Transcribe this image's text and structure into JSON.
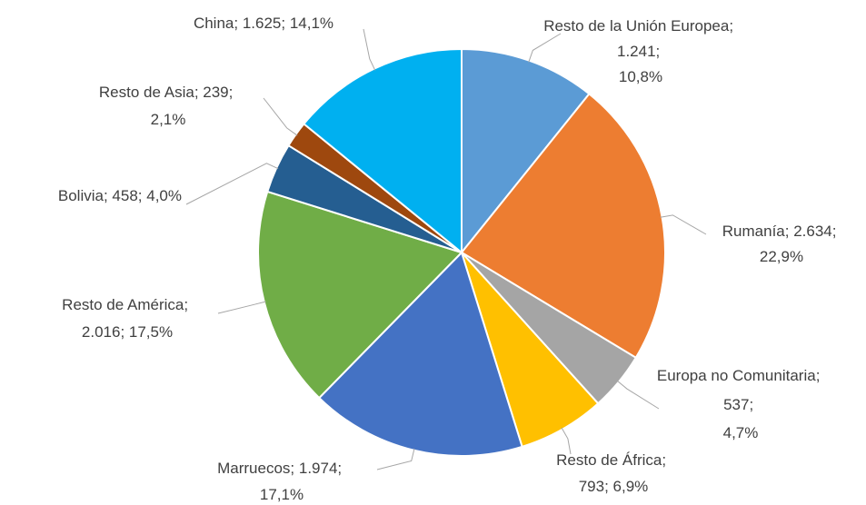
{
  "chart_data": {
    "type": "pie",
    "categories": [
      "Resto de la Unión Europea",
      "Rumanía",
      "Europa no Comunitaria",
      "Resto de África",
      "Marruecos",
      "Resto de América",
      "Bolivia",
      "Resto de Asia",
      "China"
    ],
    "values": [
      1241,
      2634,
      537,
      793,
      1974,
      2016,
      458,
      239,
      1625
    ],
    "value_labels": [
      "1.241",
      "2.634",
      "537",
      "793",
      "1.974",
      "2.016",
      "458",
      "239",
      "1.625"
    ],
    "percents": [
      10.8,
      22.9,
      4.7,
      6.9,
      17.1,
      17.5,
      4.0,
      2.1,
      14.1
    ],
    "percent_labels": [
      "10,8%",
      "22,9%",
      "4,7%",
      "6,9%",
      "17,1%",
      "17,5%",
      "4,0%",
      "2,1%",
      "14,1%"
    ],
    "separator": "; ",
    "colors": [
      "#5b9bd5",
      "#ed7d31",
      "#a5a5a5",
      "#ffc000",
      "#4472c4",
      "#70ad47",
      "#255e91",
      "#9e480e",
      "#00b0f0"
    ]
  }
}
